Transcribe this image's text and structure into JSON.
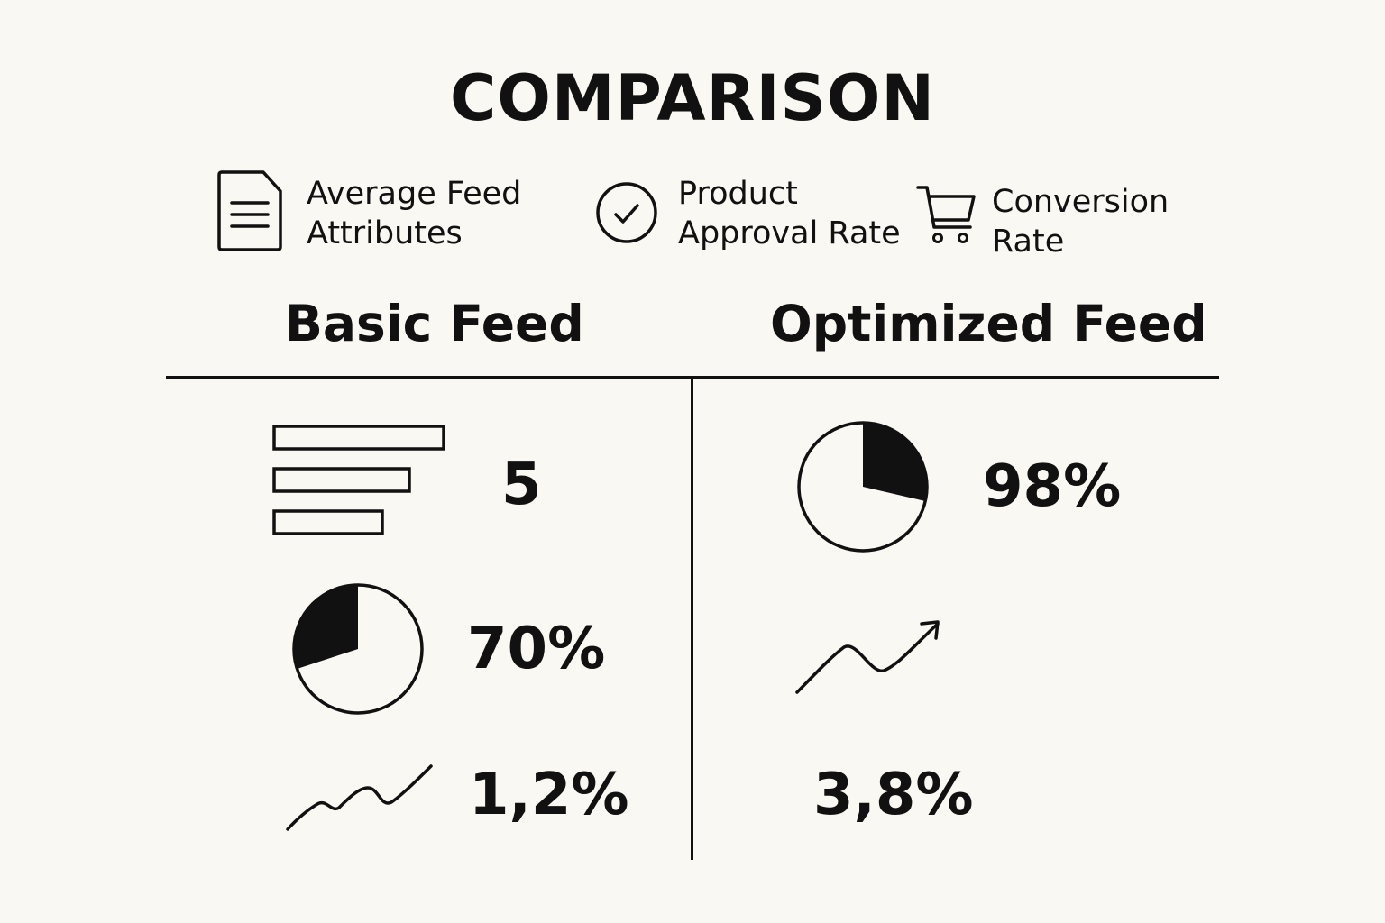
{
  "title": "COMPARISON",
  "legend": [
    {
      "icon": "document-icon",
      "label_line1": "Average Feed",
      "label_line2": "Attributes"
    },
    {
      "icon": "check-circle-icon",
      "label_line1": "Product",
      "label_line2": "Approval Rate"
    },
    {
      "icon": "shopping-cart-icon",
      "label_line1": "Conversion",
      "label_line2": "Rate"
    }
  ],
  "columns": {
    "basic": {
      "heading": "Basic Feed",
      "attributes_value": "5",
      "approval_value": "70%",
      "approval_fraction": 0.7,
      "conversion_value": "1,2%"
    },
    "optimized": {
      "heading": "Optimized Feed",
      "approval_value": "98%",
      "conversion_value": "3,8%"
    }
  },
  "colors": {
    "background": "#faf8f3",
    "ink": "#111111"
  }
}
